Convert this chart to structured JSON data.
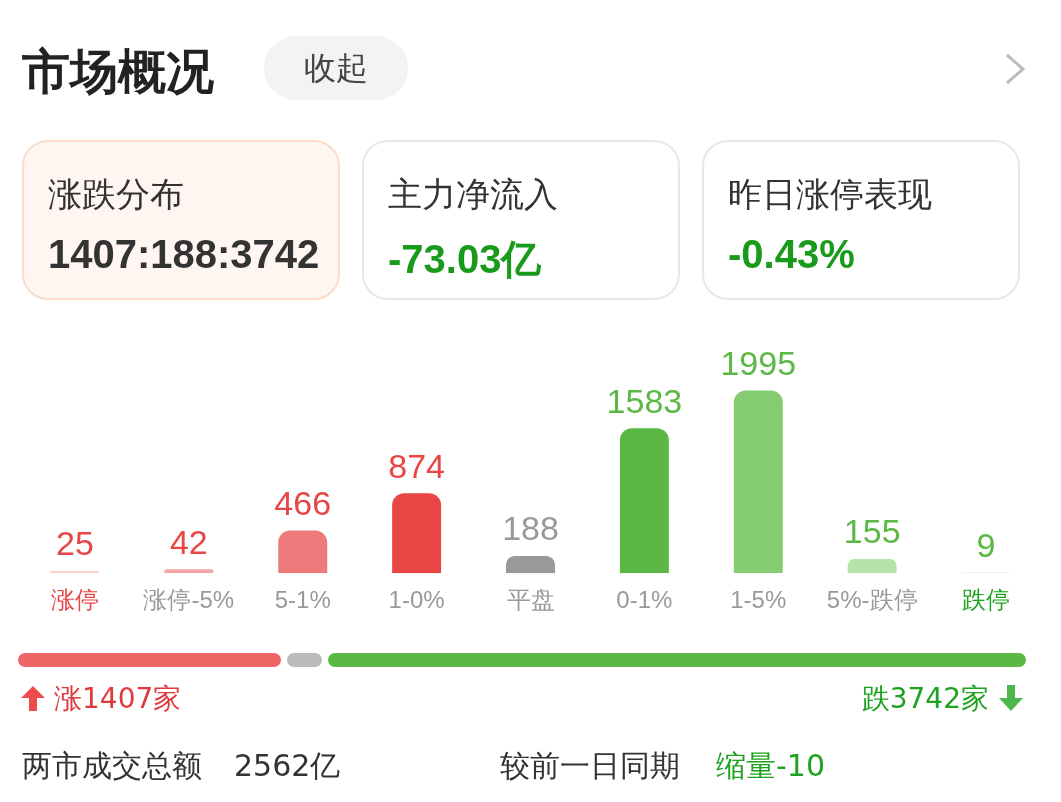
{
  "chart_data": {
    "type": "bar",
    "title": "市场概况",
    "categories": [
      "涨停",
      "涨停-5%",
      "5-1%",
      "1-0%",
      "平盘",
      "0-1%",
      "1-5%",
      "5%-跌停",
      "跌停"
    ],
    "values": [
      25,
      42,
      466,
      874,
      188,
      1583,
      1995,
      155,
      9
    ],
    "colors": [
      "#f9d0d0",
      "#f2a7a7",
      "#ee7b7b",
      "#e84545",
      "#999999",
      "#5bb845",
      "#85cc72",
      "#b5e3a8",
      "#d9f0d2"
    ],
    "data_labels": true,
    "grid": false,
    "legend": false,
    "tick_labels": "x",
    "annotations": [
      "收起",
      "涨跌分布",
      "1407:188:3742",
      "主力净流入",
      "-73.03亿",
      "昨日涨停表现",
      "-0.43%",
      "涨1407家",
      "跌3742家",
      "两市成交总额",
      "2562亿",
      "较前一日同期",
      "缩量-10"
    ]
  }
}
